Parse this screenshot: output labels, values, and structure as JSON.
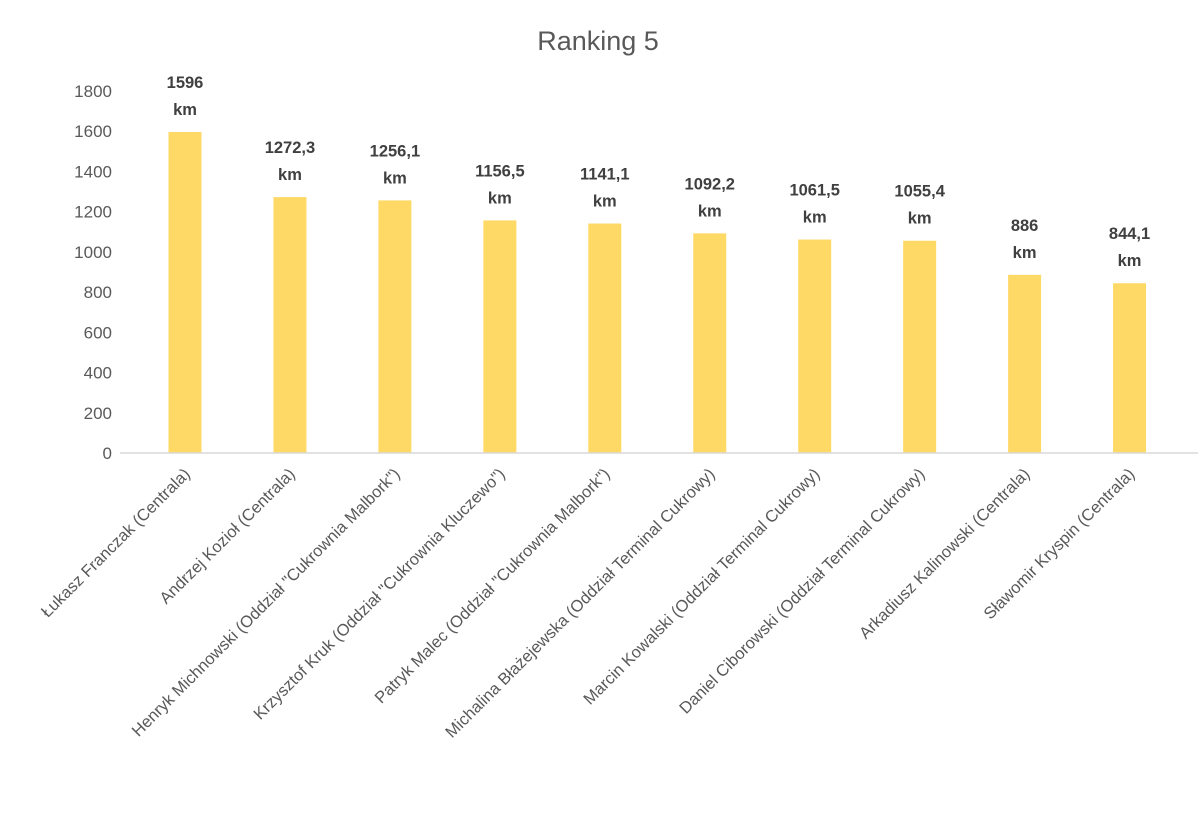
{
  "chart_data": {
    "type": "bar",
    "title": "Ranking 5",
    "xlabel": "",
    "ylabel": "",
    "ylim": [
      0,
      1800
    ],
    "yticks": [
      0,
      200,
      400,
      600,
      800,
      1000,
      1200,
      1400,
      1600,
      1800
    ],
    "grid": false,
    "legend": "none",
    "categories": [
      "Łukasz Franczak (Centrala)",
      "Andrzej Kozioł (Centrala)",
      "Henryk Michnowski (Oddział \"Cukrownia Malbork\")",
      "Krzysztof Kruk (Oddział \"Cukrownia Kluczewo\")",
      "Patryk Malec (Oddział \"Cukrownia Malbork\")",
      "Michalina Błażejewska (Oddział Terminal Cukrowy)",
      "Marcin Kowalski (Oddział Terminal Cukrowy)",
      "Daniel Ciborowski (Oddział Terminal Cukrowy)",
      "Arkadiusz Kalinowski (Centrala)",
      "Sławomir Kryspin (Centrala)"
    ],
    "values": [
      1596,
      1272.3,
      1256.1,
      1156.5,
      1141.1,
      1092.2,
      1061.5,
      1055.4,
      886,
      844.1
    ],
    "data_labels": [
      [
        "1596",
        "km"
      ],
      [
        "1272,3",
        "km"
      ],
      [
        "1256,1",
        "km"
      ],
      [
        "1156,5",
        "km"
      ],
      [
        "1141,1",
        "km"
      ],
      [
        "1092,2",
        "km"
      ],
      [
        "1061,5",
        "km"
      ],
      [
        "1055,4",
        "km"
      ],
      [
        "886",
        "km"
      ],
      [
        "844,1",
        "km"
      ]
    ],
    "colors": {
      "bar": "#FFD966",
      "axis": "#D9D9D9",
      "text": "#595959",
      "label": "#404040"
    }
  }
}
